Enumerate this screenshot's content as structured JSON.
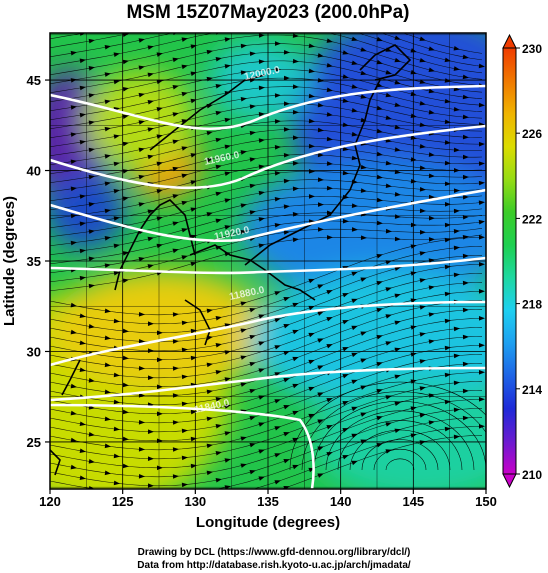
{
  "title": "MSM 15Z07May2023 (200.0hPa)",
  "xlabel": "Longitude (degrees)",
  "ylabel": "Latitude  (degrees)",
  "footer": {
    "line1": "Drawing by DCL (https://www.gfd-dennou.org/library/dcl/)",
    "line2": "Data from http://database.rish.kyoto-u.ac.jp/arch/jmadata/"
  },
  "chart_data": {
    "type": "heatmap",
    "x_range": [
      120,
      150
    ],
    "y_range": [
      22.4,
      47.6
    ],
    "x_ticks": [
      "120",
      "125",
      "130",
      "135",
      "140",
      "145",
      "150"
    ],
    "y_ticks": [
      "25",
      "30",
      "35",
      "40",
      "45"
    ],
    "grid": true,
    "colorbar": {
      "min": 210,
      "max": 230,
      "ticks": [
        "210",
        "214",
        "218",
        "222",
        "226",
        "230"
      ],
      "colors": [
        "#c800c8",
        "#6a1bd0",
        "#1e2ad8",
        "#1e64e6",
        "#1ea0f0",
        "#1ed0f0",
        "#1ed8a0",
        "#1ed050",
        "#3ccc28",
        "#96dc14",
        "#dcdc00",
        "#f0b400",
        "#f07800",
        "#f03c00"
      ]
    },
    "contours": [
      {
        "label": "12000.0",
        "lat_w": 32.3,
        "lat_e": 45.0
      },
      {
        "label": "11960.0",
        "lat_w": 29.5,
        "lat_e": 41.2
      },
      {
        "label": "11920.0",
        "lat_w": 27.0,
        "lat_e": 37.6
      },
      {
        "label": "11880.0",
        "lat_w": 38.0,
        "lat_e": 33.2
      },
      {
        "label": "11840.0",
        "lat_w": 40.0,
        "lat_e": 29.5
      }
    ],
    "legend": "right"
  }
}
